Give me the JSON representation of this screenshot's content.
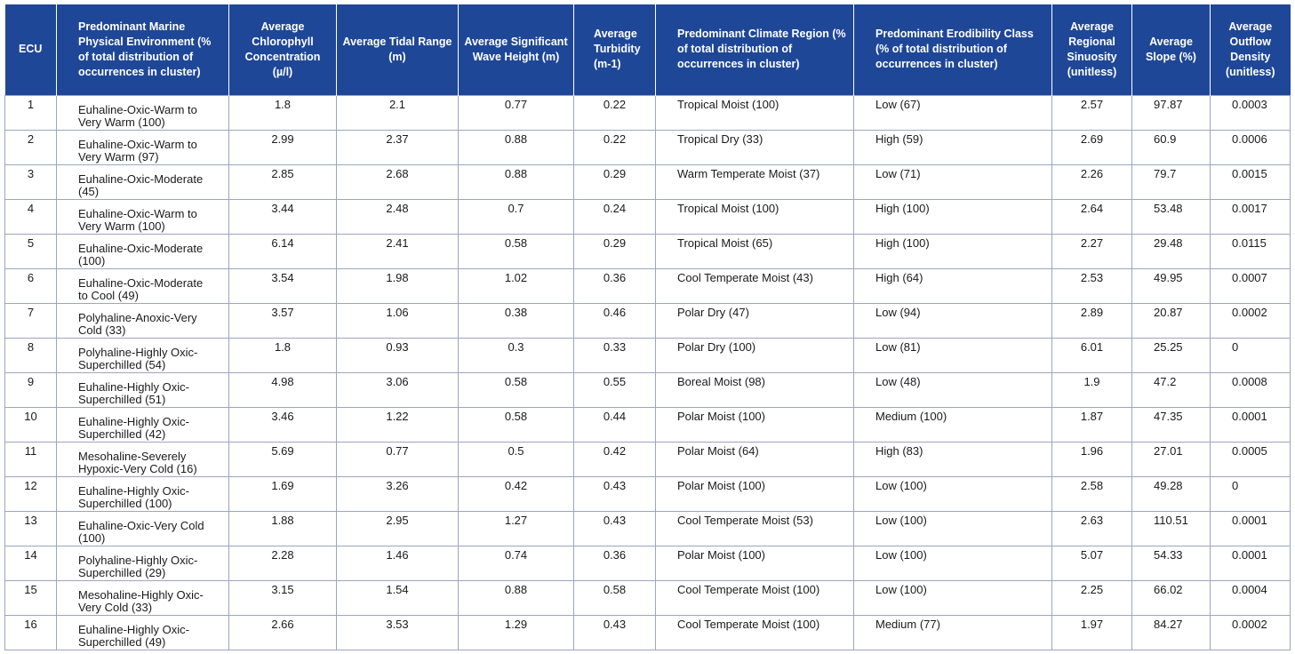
{
  "table": {
    "headers": [
      "ECU",
      "Predominant Marine Physical Environment (% of total distribution of occurrences in cluster)",
      "Average Chlorophyll Concentration (µ/l)",
      "Average Tidal Range (m)",
      "Average Significant Wave Height (m)",
      "Average Turbidity (m-1)",
      "Predominant Climate Region (% of total distribution of occurrences in cluster)",
      "Predominant Erodibility Class (% of total distribution of occurrences in cluster)",
      "Average Regional Sinuosity (unitless)",
      "Average Slope (%)",
      "Average Outflow Density (unitless)"
    ],
    "rows": [
      [
        "1",
        "Euhaline-Oxic-Warm to Very Warm (100)",
        "1.8",
        "2.1",
        "0.77",
        "0.22",
        "Tropical Moist (100)",
        "Low (67)",
        "2.57",
        "97.87",
        "0.0003"
      ],
      [
        "2",
        "Euhaline-Oxic-Warm to Very Warm (97)",
        "2.99",
        "2.37",
        "0.88",
        "0.22",
        "Tropical Dry (33)",
        "High (59)",
        "2.69",
        "60.9",
        "0.0006"
      ],
      [
        "3",
        "Euhaline-Oxic-Moderate (45)",
        "2.85",
        "2.68",
        "0.88",
        "0.29",
        "Warm Temperate Moist (37)",
        "Low  (71)",
        "2.26",
        "79.7",
        "0.0015"
      ],
      [
        "4",
        "Euhaline-Oxic-Warm to Very Warm (100)",
        "3.44",
        "2.48",
        "0.7",
        "0.24",
        "Tropical Moist (100)",
        "High (100)",
        "2.64",
        "53.48",
        "0.0017"
      ],
      [
        "5",
        "Euhaline-Oxic-Moderate (100)",
        "6.14",
        "2.41",
        "0.58",
        "0.29",
        "Tropical Moist (65)",
        "High (100)",
        "2.27",
        "29.48",
        "0.0115"
      ],
      [
        "6",
        "Euhaline-Oxic-Moderate to Cool (49)",
        "3.54",
        "1.98",
        "1.02",
        "0.36",
        "Cool Temperate Moist (43)",
        "High (64)",
        "2.53",
        "49.95",
        "0.0007"
      ],
      [
        "7",
        "Polyhaline-Anoxic-Very Cold (33)",
        "3.57",
        "1.06",
        "0.38",
        "0.46",
        "Polar Dry (47)",
        "Low (94)",
        "2.89",
        "20.87",
        "0.0002"
      ],
      [
        "8",
        "Polyhaline-Highly Oxic-Superchilled (54)",
        "1.8",
        "0.93",
        "0.3",
        "0.33",
        "Polar Dry (100)",
        "Low (81)",
        "6.01",
        "25.25",
        "0"
      ],
      [
        "9",
        "Euhaline-Highly Oxic-Superchilled (51)",
        "4.98",
        "3.06",
        "0.58",
        "0.55",
        "Boreal Moist (98)",
        "Low (48)",
        "1.9",
        "47.2",
        "0.0008"
      ],
      [
        "10",
        "Euhaline-Highly Oxic-Superchilled (42)",
        "3.46",
        "1.22",
        "0.58",
        "0.44",
        "Polar Moist (100)",
        "Medium (100)",
        "1.87",
        "47.35",
        "0.0001"
      ],
      [
        "11",
        "Mesohaline-Severely Hypoxic-Very Cold (16)",
        "5.69",
        "0.77",
        "0.5",
        "0.42",
        "Polar Moist (64)",
        "High (83)",
        "1.96",
        "27.01",
        "0.0005"
      ],
      [
        "12",
        "Euhaline-Highly Oxic-Superchilled (100)",
        "1.69",
        "3.26",
        "0.42",
        "0.43",
        "Polar Moist (100)",
        "Low (100)",
        "2.58",
        "49.28",
        "0"
      ],
      [
        "13",
        "Euhaline-Oxic-Very Cold (100)",
        "1.88",
        "2.95",
        "1.27",
        "0.43",
        "Cool Temperate Moist (53)",
        "Low (100)",
        "2.63",
        "110.51",
        "0.0001"
      ],
      [
        "14",
        "Polyhaline-Highly Oxic-Superchilled (29)",
        "2.28",
        "1.46",
        "0.74",
        "0.36",
        "Polar Moist (100)",
        "Low (100)",
        "5.07",
        "54.33",
        "0.0001"
      ],
      [
        "15",
        "Mesohaline-Highly Oxic-Very Cold (33)",
        "3.15",
        "1.54",
        "0.88",
        "0.58",
        "Cool Temperate Moist (100)",
        "Low (100)",
        "2.25",
        "66.02",
        "0.0004"
      ],
      [
        "16",
        "Euhaline-Highly Oxic-Superchilled (49)",
        "2.66",
        "3.53",
        "1.29",
        "0.43",
        "Cool Temperate Moist (100)",
        "Medium (77)",
        "1.97",
        "84.27",
        "0.0002"
      ]
    ]
  },
  "colors": {
    "header_bg": "#1f4797",
    "header_text": "#ffffff",
    "grid": "#9aa6bf"
  }
}
